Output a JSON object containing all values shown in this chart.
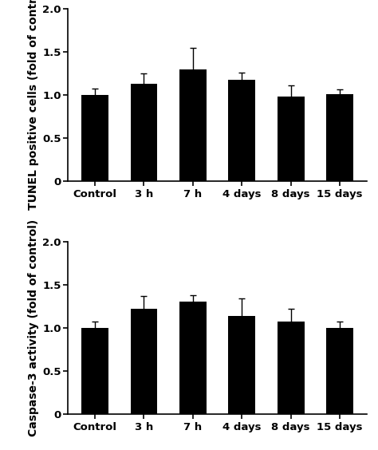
{
  "categories": [
    "Control",
    "3 h",
    "7 h",
    "4 days",
    "8 days",
    "15 days"
  ],
  "top_values": [
    1.0,
    1.13,
    1.3,
    1.18,
    0.98,
    1.01
  ],
  "top_errors": [
    0.08,
    0.12,
    0.25,
    0.08,
    0.13,
    0.06
  ],
  "bottom_values": [
    1.0,
    1.22,
    1.3,
    1.14,
    1.07,
    1.0
  ],
  "bottom_errors": [
    0.07,
    0.15,
    0.08,
    0.2,
    0.15,
    0.07
  ],
  "top_ylabel": "TUNEL positive cells (fold of control)",
  "bottom_ylabel": "Caspase-3 activity (fold of control)",
  "ylim": [
    0,
    2.0
  ],
  "yticks": [
    0,
    0.5,
    1.0,
    1.5,
    2.0
  ],
  "bar_color": "#000000",
  "bar_width": 0.55,
  "capsize": 3,
  "ecolor": "#000000",
  "background_color": "#ffffff",
  "tick_label_fontsize": 9.5,
  "ylabel_fontsize": 10
}
